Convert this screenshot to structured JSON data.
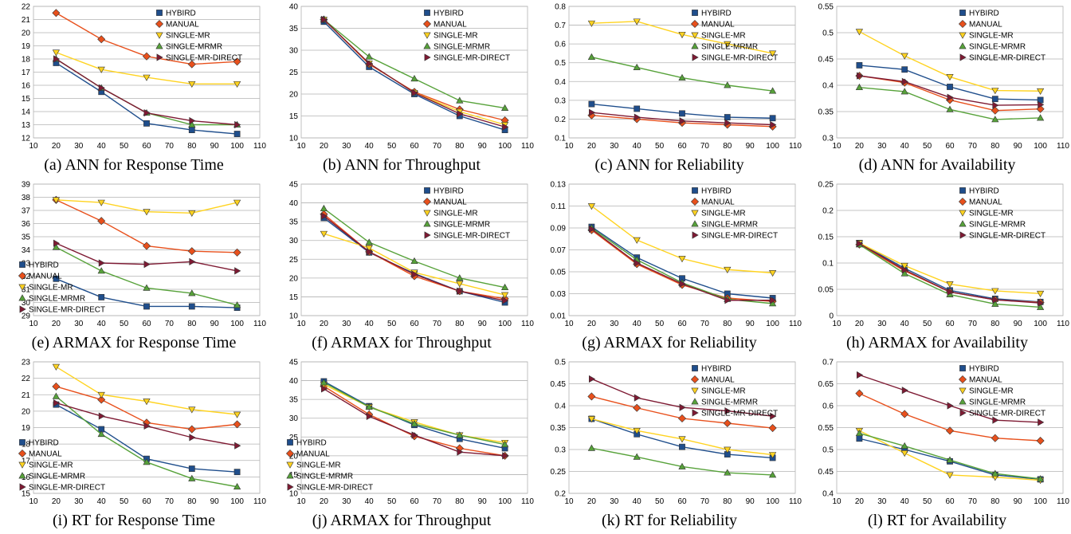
{
  "styles": {
    "HYBIRD": {
      "color": "#1f4e8c",
      "marker": "square"
    },
    "MANUAL": {
      "color": "#e8501c",
      "marker": "diamond"
    },
    "SINGLE-MR": {
      "color": "#ffd320",
      "marker": "triangle-down"
    },
    "SINGLE-MRMR": {
      "color": "#57a23a",
      "marker": "triangle-up"
    },
    "SINGLE-MR-DIRECT": {
      "color": "#7e1a33",
      "marker": "triangle-right"
    }
  },
  "chart_data": [
    {
      "type": "line",
      "caption": "(a) ANN for Response Time",
      "x": [
        20,
        40,
        60,
        80,
        100
      ],
      "xlim": [
        10,
        110
      ],
      "xticks": [
        10,
        20,
        30,
        40,
        50,
        60,
        70,
        80,
        90,
        100,
        110
      ],
      "ylim": [
        12,
        22
      ],
      "yticks": [
        12,
        13,
        14,
        15,
        16,
        17,
        18,
        19,
        20,
        21,
        22
      ],
      "legend": "top-right",
      "grid": "horizontal",
      "series": [
        {
          "name": "HYBIRD",
          "values": [
            17.7,
            15.5,
            13.1,
            12.6,
            12.3
          ]
        },
        {
          "name": "MANUAL",
          "values": [
            21.5,
            19.5,
            18.2,
            17.6,
            17.8
          ]
        },
        {
          "name": "SINGLE-MR",
          "values": [
            18.5,
            17.2,
            16.6,
            16.1,
            16.1
          ]
        },
        {
          "name": "SINGLE-MRMR",
          "values": [
            18.0,
            15.8,
            13.9,
            13.0,
            13.0
          ]
        },
        {
          "name": "SINGLE-MR-DIRECT",
          "values": [
            18.0,
            15.8,
            13.9,
            13.3,
            13.0
          ]
        }
      ]
    },
    {
      "type": "line",
      "caption": "(b) ANN for Throughput",
      "x": [
        20,
        40,
        60,
        80,
        100
      ],
      "xlim": [
        10,
        110
      ],
      "xticks": [
        10,
        20,
        30,
        40,
        50,
        60,
        70,
        80,
        90,
        100,
        110
      ],
      "ylim": [
        10,
        40
      ],
      "yticks": [
        10,
        15,
        20,
        25,
        30,
        35,
        40
      ],
      "legend": "top-right",
      "grid": "horizontal",
      "series": [
        {
          "name": "HYBIRD",
          "values": [
            36.5,
            26.2,
            20.0,
            15.0,
            11.8
          ]
        },
        {
          "name": "MANUAL",
          "values": [
            37.0,
            26.8,
            20.5,
            16.5,
            14.0
          ]
        },
        {
          "name": "SINGLE-MR",
          "values": [
            37.0,
            27.0,
            20.3,
            16.0,
            13.0
          ]
        },
        {
          "name": "SINGLE-MRMR",
          "values": [
            37.0,
            28.5,
            23.5,
            18.5,
            16.8
          ]
        },
        {
          "name": "SINGLE-MR-DIRECT",
          "values": [
            37.0,
            27.0,
            20.3,
            15.5,
            12.5
          ]
        }
      ]
    },
    {
      "type": "line",
      "caption": "(c) ANN for Reliability",
      "x": [
        20,
        40,
        60,
        80,
        100
      ],
      "xlim": [
        10,
        110
      ],
      "xticks": [
        10,
        20,
        30,
        40,
        50,
        60,
        70,
        80,
        90,
        100,
        110
      ],
      "ylim": [
        0.1,
        0.8
      ],
      "yticks": [
        0.1,
        0.2,
        0.3,
        0.4,
        0.5,
        0.6,
        0.7,
        0.8
      ],
      "legend": "top-right",
      "grid": "horizontal",
      "series": [
        {
          "name": "HYBIRD",
          "values": [
            0.28,
            0.255,
            0.23,
            0.21,
            0.205
          ]
        },
        {
          "name": "MANUAL",
          "values": [
            0.22,
            0.2,
            0.18,
            0.17,
            0.16
          ]
        },
        {
          "name": "SINGLE-MR",
          "values": [
            0.71,
            0.72,
            0.65,
            0.6,
            0.55
          ]
        },
        {
          "name": "SINGLE-MRMR",
          "values": [
            0.53,
            0.475,
            0.42,
            0.38,
            0.35
          ]
        },
        {
          "name": "SINGLE-MR-DIRECT",
          "values": [
            0.235,
            0.21,
            0.19,
            0.18,
            0.17
          ]
        }
      ]
    },
    {
      "type": "line",
      "caption": "(d) ANN for Availability",
      "x": [
        20,
        40,
        60,
        80,
        100
      ],
      "xlim": [
        10,
        110
      ],
      "xticks": [
        10,
        20,
        30,
        40,
        50,
        60,
        70,
        80,
        90,
        100,
        110
      ],
      "ylim": [
        0.3,
        0.55
      ],
      "yticks": [
        0.3,
        0.35,
        0.4,
        0.45,
        0.5,
        0.55
      ],
      "legend": "top-right",
      "grid": "horizontal",
      "series": [
        {
          "name": "HYBIRD",
          "values": [
            0.438,
            0.43,
            0.397,
            0.374,
            0.372
          ]
        },
        {
          "name": "MANUAL",
          "values": [
            0.418,
            0.405,
            0.372,
            0.352,
            0.355
          ]
        },
        {
          "name": "SINGLE-MR",
          "values": [
            0.502,
            0.456,
            0.416,
            0.39,
            0.389
          ]
        },
        {
          "name": "SINGLE-MRMR",
          "values": [
            0.396,
            0.388,
            0.354,
            0.335,
            0.338
          ]
        },
        {
          "name": "SINGLE-MR-DIRECT",
          "values": [
            0.418,
            0.407,
            0.377,
            0.362,
            0.363
          ]
        }
      ]
    },
    {
      "type": "line",
      "caption": "(e) ARMAX for Response Time",
      "x": [
        20,
        40,
        60,
        80,
        100
      ],
      "xlim": [
        10,
        110
      ],
      "xticks": [
        10,
        20,
        30,
        40,
        50,
        60,
        70,
        80,
        90,
        100,
        110
      ],
      "ylim": [
        29,
        39
      ],
      "yticks": [
        29,
        30,
        31,
        32,
        33,
        34,
        35,
        36,
        37,
        38,
        39
      ],
      "legend": "bottom-left",
      "grid": "horizontal",
      "series": [
        {
          "name": "HYBIRD",
          "values": [
            31.8,
            30.4,
            29.7,
            29.7,
            29.6
          ]
        },
        {
          "name": "MANUAL",
          "values": [
            37.8,
            36.2,
            34.3,
            33.9,
            33.8
          ]
        },
        {
          "name": "SINGLE-MR",
          "values": [
            37.8,
            37.6,
            36.9,
            36.8,
            37.6
          ]
        },
        {
          "name": "SINGLE-MRMR",
          "values": [
            34.2,
            32.4,
            31.1,
            30.7,
            29.8
          ]
        },
        {
          "name": "SINGLE-MR-DIRECT",
          "values": [
            34.5,
            33.0,
            32.9,
            33.1,
            32.4
          ]
        }
      ]
    },
    {
      "type": "line",
      "caption": "(f) ARMAX for Throughput",
      "x": [
        20,
        40,
        60,
        80,
        100
      ],
      "xlim": [
        10,
        110
      ],
      "xticks": [
        10,
        20,
        30,
        40,
        50,
        60,
        70,
        80,
        90,
        100,
        110
      ],
      "ylim": [
        10,
        45
      ],
      "yticks": [
        10,
        15,
        20,
        25,
        30,
        35,
        40,
        45
      ],
      "legend": "top-right",
      "grid": "horizontal",
      "series": [
        {
          "name": "HYBIRD",
          "values": [
            36.0,
            26.8,
            21.2,
            16.5,
            13.5
          ]
        },
        {
          "name": "MANUAL",
          "values": [
            37.0,
            27.0,
            20.5,
            16.5,
            14.5
          ]
        },
        {
          "name": "SINGLE-MR",
          "values": [
            31.8,
            28.0,
            21.5,
            18.5,
            15.5
          ]
        },
        {
          "name": "SINGLE-MRMR",
          "values": [
            38.5,
            29.5,
            24.5,
            20.0,
            17.5
          ]
        },
        {
          "name": "SINGLE-MR-DIRECT",
          "values": [
            36.5,
            27.0,
            21.0,
            16.5,
            14.0
          ]
        }
      ]
    },
    {
      "type": "line",
      "caption": "(g) ARMAX for Reliability",
      "x": [
        20,
        40,
        60,
        80,
        100
      ],
      "xlim": [
        10,
        110
      ],
      "xticks": [
        10,
        20,
        30,
        40,
        50,
        60,
        70,
        80,
        90,
        100,
        110
      ],
      "ylim": [
        0.01,
        0.13
      ],
      "yticks": [
        0.01,
        0.03,
        0.05,
        0.07,
        0.09,
        0.11,
        0.13
      ],
      "legend": "top-right",
      "grid": "horizontal",
      "series": [
        {
          "name": "HYBIRD",
          "values": [
            0.091,
            0.063,
            0.044,
            0.03,
            0.026
          ]
        },
        {
          "name": "MANUAL",
          "values": [
            0.088,
            0.057,
            0.038,
            0.026,
            0.023
          ]
        },
        {
          "name": "SINGLE-MR",
          "values": [
            0.11,
            0.079,
            0.062,
            0.052,
            0.049
          ]
        },
        {
          "name": "SINGLE-MRMR",
          "values": [
            0.09,
            0.061,
            0.04,
            0.025,
            0.021
          ]
        },
        {
          "name": "SINGLE-MR-DIRECT",
          "values": [
            0.089,
            0.058,
            0.039,
            0.024,
            0.024
          ]
        }
      ]
    },
    {
      "type": "line",
      "caption": "(h) ARMAX for Availability",
      "x": [
        20,
        40,
        60,
        80,
        100
      ],
      "xlim": [
        10,
        110
      ],
      "xticks": [
        10,
        20,
        30,
        40,
        50,
        60,
        70,
        80,
        90,
        100,
        110
      ],
      "ylim": [
        0,
        0.25
      ],
      "yticks": [
        0,
        0.05,
        0.1,
        0.15,
        0.2,
        0.25
      ],
      "legend": "top-right",
      "grid": "horizontal",
      "series": [
        {
          "name": "HYBIRD",
          "values": [
            0.138,
            0.09,
            0.048,
            0.032,
            0.026
          ]
        },
        {
          "name": "MANUAL",
          "values": [
            0.135,
            0.085,
            0.045,
            0.03,
            0.025
          ]
        },
        {
          "name": "SINGLE-MR",
          "values": [
            0.138,
            0.095,
            0.06,
            0.047,
            0.042
          ]
        },
        {
          "name": "SINGLE-MRMR",
          "values": [
            0.135,
            0.08,
            0.04,
            0.022,
            0.016
          ]
        },
        {
          "name": "SINGLE-MR-DIRECT",
          "values": [
            0.137,
            0.087,
            0.045,
            0.03,
            0.024
          ]
        }
      ]
    },
    {
      "type": "line",
      "caption": "(i) RT for Response Time",
      "x": [
        20,
        40,
        60,
        80,
        100
      ],
      "xlim": [
        10,
        110
      ],
      "xticks": [
        10,
        20,
        30,
        40,
        50,
        60,
        70,
        80,
        90,
        100,
        110
      ],
      "ylim": [
        15,
        23
      ],
      "yticks": [
        15,
        16,
        17,
        18,
        19,
        20,
        21,
        22,
        23
      ],
      "legend": "bottom-left",
      "grid": "horizontal",
      "series": [
        {
          "name": "HYBIRD",
          "values": [
            20.4,
            18.9,
            17.1,
            16.5,
            16.3
          ]
        },
        {
          "name": "MANUAL",
          "values": [
            21.5,
            20.7,
            19.3,
            18.9,
            19.2
          ]
        },
        {
          "name": "SINGLE-MR",
          "values": [
            22.7,
            21.0,
            20.6,
            20.1,
            19.8
          ]
        },
        {
          "name": "SINGLE-MRMR",
          "values": [
            20.9,
            18.6,
            16.9,
            15.9,
            15.4
          ]
        },
        {
          "name": "SINGLE-MR-DIRECT",
          "values": [
            20.5,
            19.7,
            19.1,
            18.4,
            17.9
          ]
        }
      ]
    },
    {
      "type": "line",
      "caption": "(j) ARMAX for Throughput",
      "x": [
        20,
        40,
        60,
        80,
        100
      ],
      "xlim": [
        10,
        110
      ],
      "xticks": [
        10,
        20,
        30,
        40,
        50,
        60,
        70,
        80,
        90,
        100,
        110
      ],
      "ylim": [
        10,
        45
      ],
      "yticks": [
        10,
        15,
        20,
        25,
        30,
        35,
        40,
        45
      ],
      "legend": "bottom-left",
      "grid": "horizontal",
      "series": [
        {
          "name": "HYBIRD",
          "values": [
            39.8,
            33.2,
            28.2,
            24.5,
            22.0
          ]
        },
        {
          "name": "MANUAL",
          "values": [
            38.5,
            31.0,
            25.2,
            22.0,
            20.0
          ]
        },
        {
          "name": "SINGLE-MR",
          "values": [
            39.0,
            33.0,
            29.0,
            25.5,
            23.5
          ]
        },
        {
          "name": "SINGLE-MRMR",
          "values": [
            39.5,
            33.0,
            28.5,
            25.5,
            23.0
          ]
        },
        {
          "name": "SINGLE-MR-DIRECT",
          "values": [
            37.8,
            30.5,
            25.5,
            21.0,
            20.0
          ]
        }
      ]
    },
    {
      "type": "line",
      "caption": "(k) RT for Reliability",
      "x": [
        20,
        40,
        60,
        80,
        100
      ],
      "xlim": [
        10,
        110
      ],
      "xticks": [
        10,
        20,
        30,
        40,
        50,
        60,
        70,
        80,
        90,
        100,
        110
      ],
      "ylim": [
        0.2,
        0.5
      ],
      "yticks": [
        0.2,
        0.25,
        0.3,
        0.35,
        0.4,
        0.45,
        0.5
      ],
      "legend": "top-right",
      "grid": "horizontal",
      "series": [
        {
          "name": "HYBIRD",
          "values": [
            0.37,
            0.335,
            0.306,
            0.289,
            0.281
          ]
        },
        {
          "name": "MANUAL",
          "values": [
            0.421,
            0.395,
            0.371,
            0.36,
            0.349
          ]
        },
        {
          "name": "SINGLE-MR",
          "values": [
            0.37,
            0.343,
            0.324,
            0.3,
            0.288
          ]
        },
        {
          "name": "SINGLE-MRMR",
          "values": [
            0.303,
            0.283,
            0.261,
            0.247,
            0.242
          ]
        },
        {
          "name": "SINGLE-MR-DIRECT",
          "values": [
            0.461,
            0.418,
            0.396,
            0.388,
            0.376
          ]
        }
      ]
    },
    {
      "type": "line",
      "caption": "(l) RT for Availability",
      "x": [
        20,
        40,
        60,
        80,
        100
      ],
      "xlim": [
        10,
        110
      ],
      "xticks": [
        10,
        20,
        30,
        40,
        50,
        60,
        70,
        80,
        90,
        100,
        110
      ],
      "ylim": [
        0.4,
        0.7
      ],
      "yticks": [
        0.4,
        0.45,
        0.5,
        0.55,
        0.6,
        0.65,
        0.7
      ],
      "legend": "top-right",
      "grid": "horizontal",
      "series": [
        {
          "name": "HYBIRD",
          "values": [
            0.525,
            0.5,
            0.473,
            0.442,
            0.432
          ]
        },
        {
          "name": "MANUAL",
          "values": [
            0.628,
            0.581,
            0.543,
            0.526,
            0.52
          ]
        },
        {
          "name": "SINGLE-MR",
          "values": [
            0.543,
            0.492,
            0.442,
            0.437,
            0.43
          ]
        },
        {
          "name": "SINGLE-MRMR",
          "values": [
            0.537,
            0.508,
            0.476,
            0.445,
            0.433
          ]
        },
        {
          "name": "SINGLE-MR-DIRECT",
          "values": [
            0.67,
            0.635,
            0.6,
            0.567,
            0.562
          ]
        }
      ]
    }
  ]
}
